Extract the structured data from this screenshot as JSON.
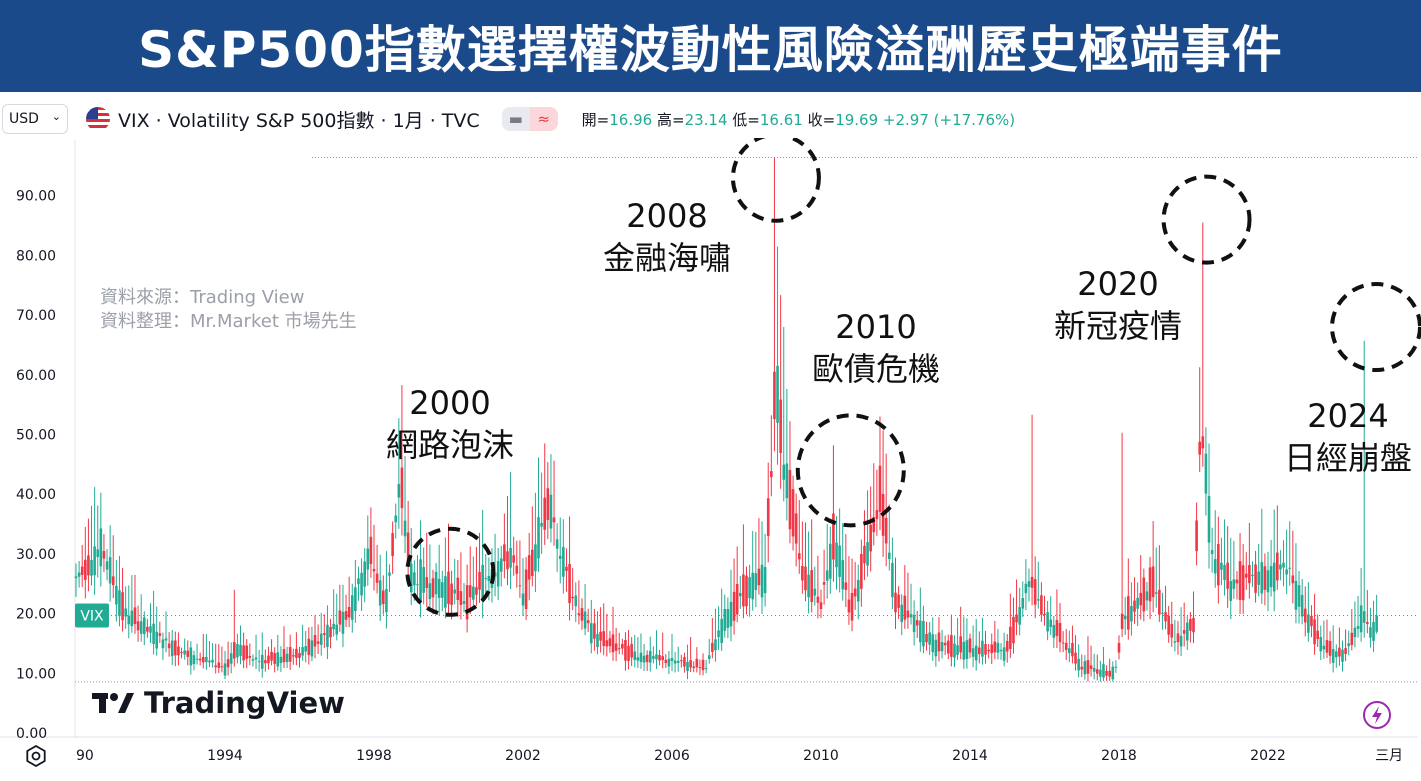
{
  "title": "S&P500指數選擇權波動性風險溢酬歷史極端事件",
  "toolbar": {
    "currency": "USD",
    "symbol_line": "VIX · Volatility S&P 500指數 · 1月 · TVC",
    "ohlc": {
      "open_label": "開=",
      "open": "16.96",
      "high_label": "高=",
      "high": "23.14",
      "low_label": "低=",
      "low": "16.61",
      "close_label": "收=",
      "close": "19.69",
      "change": "+2.97 (+17.76%)"
    }
  },
  "notes": {
    "source": "資料來源：Trading View",
    "compiled": "資料整理：Mr.Market 市場先生"
  },
  "brand": {
    "name": "TradingView"
  },
  "icons": {
    "flag": "us-flag-icon",
    "settings": "gear-icon",
    "alert": "lightning-icon",
    "logo": "tradingview-logo-icon"
  },
  "colors": {
    "up": "#22ab94",
    "down": "#f23645",
    "title_bg": "#1b4a8a",
    "annotation": "#111111"
  },
  "annotations": [
    {
      "year": "2000",
      "label": "網路泡沫"
    },
    {
      "year": "2008",
      "label": "金融海嘯"
    },
    {
      "year": "2010",
      "label": "歐債危機"
    },
    {
      "year": "2020",
      "label": "新冠疫情"
    },
    {
      "year": "2024",
      "label": "日經崩盤"
    }
  ],
  "chart_data": {
    "type": "candlestick",
    "symbol": "VIX",
    "interval": "monthly",
    "ylim": [
      0,
      100
    ],
    "yticks": [
      "0.00",
      "10.00",
      "20.00",
      "30.00",
      "40.00",
      "50.00",
      "60.00",
      "70.00",
      "80.00",
      "90.00"
    ],
    "x_range": [
      "1990-01",
      "2024-12"
    ],
    "xticks": [
      {
        "label": "90",
        "t": 1990.0
      },
      {
        "label": "1994",
        "t": 1994.0
      },
      {
        "label": "1998",
        "t": 1998.0
      },
      {
        "label": "2002",
        "t": 2002.0
      },
      {
        "label": "2006",
        "t": 2006.0
      },
      {
        "label": "2010",
        "t": 2010.0
      },
      {
        "label": "2014",
        "t": 2014.0
      },
      {
        "label": "2018",
        "t": 2018.0
      },
      {
        "label": "2022",
        "t": 2022.0
      },
      {
        "label": "三月",
        "t": 2025.25
      }
    ],
    "reference_lines": {
      "max_high": 96.4,
      "min_low": 8.56
    },
    "last_price_label": "VIX",
    "last_price": 19.69,
    "grid": false,
    "key_points": [
      {
        "t": 1990.0,
        "v": 26
      },
      {
        "t": 1990.7,
        "v": 31
      },
      {
        "t": 1991.3,
        "v": 20
      },
      {
        "t": 1992.0,
        "v": 17
      },
      {
        "t": 1993.0,
        "v": 13
      },
      {
        "t": 1994.0,
        "v": 11
      },
      {
        "t": 1994.3,
        "v": 14
      },
      {
        "t": 1995.0,
        "v": 12
      },
      {
        "t": 1996.0,
        "v": 13
      },
      {
        "t": 1996.8,
        "v": 17
      },
      {
        "t": 1997.3,
        "v": 20
      },
      {
        "t": 1997.9,
        "v": 30
      },
      {
        "t": 1998.3,
        "v": 21
      },
      {
        "t": 1998.7,
        "v": 42
      },
      {
        "t": 1999.0,
        "v": 26
      },
      {
        "t": 2000.0,
        "v": 24
      },
      {
        "t": 2000.5,
        "v": 22
      },
      {
        "t": 2001.0,
        "v": 26
      },
      {
        "t": 2001.7,
        "v": 30
      },
      {
        "t": 2002.0,
        "v": 22
      },
      {
        "t": 2002.7,
        "v": 40
      },
      {
        "t": 2003.0,
        "v": 30
      },
      {
        "t": 2003.5,
        "v": 20
      },
      {
        "t": 2004.0,
        "v": 16
      },
      {
        "t": 2005.0,
        "v": 13
      },
      {
        "t": 2006.0,
        "v": 12
      },
      {
        "t": 2006.9,
        "v": 11
      },
      {
        "t": 2007.5,
        "v": 20
      },
      {
        "t": 2008.0,
        "v": 24
      },
      {
        "t": 2008.5,
        "v": 26
      },
      {
        "t": 2008.8,
        "v": 60
      },
      {
        "t": 2009.0,
        "v": 45
      },
      {
        "t": 2009.5,
        "v": 27
      },
      {
        "t": 2010.0,
        "v": 22
      },
      {
        "t": 2010.35,
        "v": 33
      },
      {
        "t": 2010.8,
        "v": 20
      },
      {
        "t": 2011.6,
        "v": 40
      },
      {
        "t": 2012.0,
        "v": 22
      },
      {
        "t": 2013.0,
        "v": 15
      },
      {
        "t": 2014.0,
        "v": 14
      },
      {
        "t": 2015.0,
        "v": 14
      },
      {
        "t": 2015.6,
        "v": 26
      },
      {
        "t": 2016.0,
        "v": 20
      },
      {
        "t": 2017.0,
        "v": 11
      },
      {
        "t": 2017.9,
        "v": 10
      },
      {
        "t": 2018.1,
        "v": 19
      },
      {
        "t": 2018.9,
        "v": 25
      },
      {
        "t": 2019.5,
        "v": 15
      },
      {
        "t": 2020.0,
        "v": 18
      },
      {
        "t": 2020.2,
        "v": 54
      },
      {
        "t": 2020.5,
        "v": 30
      },
      {
        "t": 2021.0,
        "v": 25
      },
      {
        "t": 2022.0,
        "v": 26
      },
      {
        "t": 2022.5,
        "v": 28
      },
      {
        "t": 2023.0,
        "v": 20
      },
      {
        "t": 2023.5,
        "v": 14
      },
      {
        "t": 2024.0,
        "v": 13
      },
      {
        "t": 2024.58,
        "v": 20
      },
      {
        "t": 2024.8,
        "v": 17
      },
      {
        "t": 2024.92,
        "v": 20
      }
    ],
    "notable_highs": [
      {
        "t": 1990.7,
        "high": 36
      },
      {
        "t": 1994.25,
        "high": 24
      },
      {
        "t": 1998.7,
        "high": 45.7
      },
      {
        "t": 2001.7,
        "high": 43.7
      },
      {
        "t": 2002.55,
        "high": 48.5
      },
      {
        "t": 2008.79,
        "high": 96.4
      },
      {
        "t": 2008.85,
        "high": 81.5
      },
      {
        "t": 2009.0,
        "high": 68
      },
      {
        "t": 2010.37,
        "high": 48.2
      },
      {
        "t": 2011.62,
        "high": 48
      },
      {
        "t": 2015.64,
        "high": 53.3
      },
      {
        "t": 2018.1,
        "high": 50.3
      },
      {
        "t": 2020.21,
        "high": 85.5
      },
      {
        "t": 2020.26,
        "high": 60.6
      },
      {
        "t": 2024.59,
        "high": 65.7
      }
    ]
  }
}
